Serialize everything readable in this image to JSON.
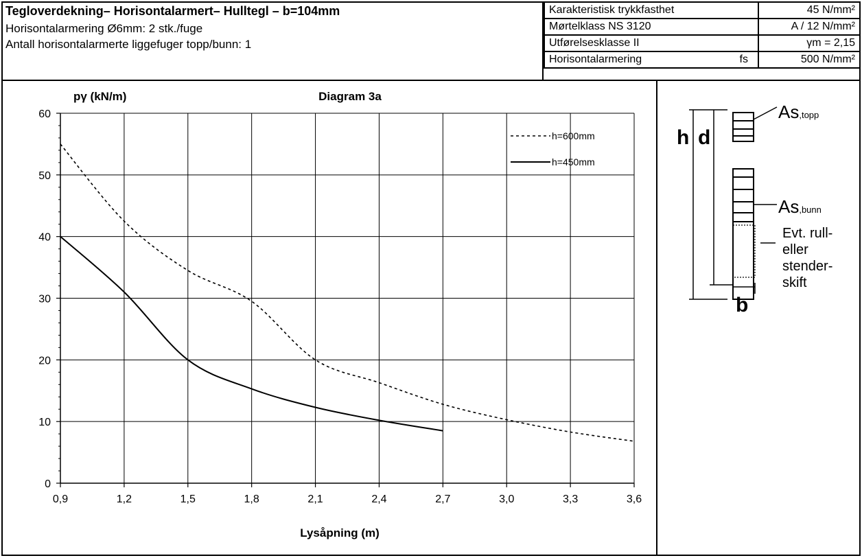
{
  "header": {
    "title": "Tegloverdekning– Horisontalarmert– Hulltegl – b=104mm",
    "line1": "Horisontalarmering Ø6mm: 2 stk./fuge",
    "line2": "Antall horisontalarmerte liggefuger topp/bunn: 1"
  },
  "properties": {
    "rows": [
      {
        "label": "Karakteristisk trykkfasthet",
        "value": "45 N/mm²"
      },
      {
        "label": "Mørtelklass NS 3120",
        "value": "A / 12 N/mm²"
      },
      {
        "label": "Utførelsesklasse II",
        "value": "γm = 2,15"
      },
      {
        "label": "Horisontalarmering",
        "sym": "fs",
        "value": "500 N/mm²"
      }
    ]
  },
  "section_diagram": {
    "h": "h",
    "d": "d",
    "b": "b",
    "as_top": "As",
    "as_top_sub": ",topp",
    "as_bottom": "As",
    "as_bottom_sub": ",bunn",
    "note_lines": [
      "Evt. rull-",
      "eller",
      "stender-",
      "skift"
    ]
  },
  "chart_data": {
    "type": "line",
    "title": "Diagram 3a",
    "ylabel": "pγ (kN/m)",
    "xlabel": "Lysåpning (m)",
    "xlim": [
      0.9,
      3.6
    ],
    "ylim": [
      0,
      60
    ],
    "x_ticks": [
      "0,9",
      "1,2",
      "1,5",
      "1,8",
      "2,1",
      "2,4",
      "2,7",
      "3,0",
      "3,3",
      "3,6"
    ],
    "y_ticks": [
      "0",
      "10",
      "20",
      "30",
      "40",
      "50",
      "60"
    ],
    "grid": true,
    "legend": "top-right",
    "series": [
      {
        "name": "h=600mm",
        "style": "dotted",
        "color": "#000000",
        "x": [
          0.9,
          1.2,
          1.5,
          1.8,
          2.1,
          2.4,
          2.7,
          3.0,
          3.3,
          3.6
        ],
        "y": [
          55,
          42.5,
          34.5,
          29.5,
          20,
          16.3,
          12.8,
          10.3,
          8.3,
          6.8
        ]
      },
      {
        "name": "h=450mm",
        "style": "solid",
        "color": "#000000",
        "x": [
          0.9,
          1.2,
          1.5,
          1.8,
          2.1,
          2.4,
          2.7
        ],
        "y": [
          40,
          31,
          20,
          15.3,
          12.3,
          10.2,
          8.5
        ]
      }
    ]
  }
}
